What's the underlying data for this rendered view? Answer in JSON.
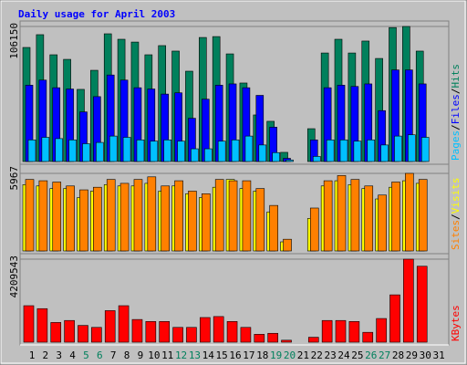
{
  "chart_data": [
    {
      "type": "bar",
      "title": "Daily usage for April 2003",
      "categories": [
        "1",
        "2",
        "3",
        "4",
        "5",
        "6",
        "7",
        "8",
        "9",
        "10",
        "11",
        "12",
        "13",
        "14",
        "15",
        "16",
        "17",
        "18",
        "19",
        "20",
        "21",
        "22",
        "23",
        "24",
        "25",
        "26",
        "27",
        "28",
        "29",
        "30",
        "31"
      ],
      "category_label_colors": [
        "#000000",
        "#000000",
        "#000000",
        "#000000",
        "#00805c",
        "#00805c",
        "#000000",
        "#000000",
        "#000000",
        "#000000",
        "#000000",
        "#00805c",
        "#00805c",
        "#000000",
        "#000000",
        "#000000",
        "#000000",
        "#000000",
        "#00805c",
        "#00805c",
        "#000000",
        "#000000",
        "#000000",
        "#000000",
        "#000000",
        "#00805c",
        "#00805c",
        "#000000",
        "#000000",
        "#000000",
        "#000000"
      ],
      "legend_separator": "/",
      "ylim": [
        0,
        106150
      ],
      "yticks": [
        106150
      ],
      "series": [
        {
          "name": "Hits",
          "color": "#00805c",
          "values": [
            89650,
            99700,
            83900,
            80300,
            56700,
            71700,
            100400,
            96100,
            93900,
            83900,
            91100,
            86800,
            71000,
            97500,
            98200,
            84600,
            61700,
            36600,
            31600,
            7200,
            0,
            25800,
            85300,
            96100,
            85300,
            94700,
            81000,
            105300,
            106150,
            86800,
            0
          ]
        },
        {
          "name": "Files",
          "color": "#0000ff",
          "values": [
            60000,
            64000,
            58000,
            57000,
            39000,
            51000,
            68000,
            64000,
            58000,
            57000,
            53000,
            54000,
            34000,
            49000,
            60000,
            61000,
            58000,
            52000,
            27000,
            2500,
            0,
            17000,
            58000,
            60000,
            59000,
            61000,
            40000,
            72000,
            72000,
            61000,
            0
          ]
        },
        {
          "name": "Pages",
          "color": "#00c0ff",
          "values": [
            17000,
            19000,
            18000,
            17000,
            14000,
            15000,
            20000,
            19000,
            17000,
            16000,
            17000,
            16000,
            10000,
            10000,
            16000,
            17000,
            20000,
            13000,
            7000,
            1200,
            0,
            4000,
            17000,
            17000,
            16000,
            17000,
            13000,
            20000,
            21000,
            19000,
            0
          ]
        }
      ]
    },
    {
      "type": "bar",
      "ylim": [
        0,
        5967
      ],
      "yticks": [
        5967
      ],
      "legend_separator": "/",
      "series": [
        {
          "name": "Visits",
          "color": "#ffff00",
          "values": [
            5100,
            5000,
            4800,
            4800,
            4100,
            4600,
            5100,
            5000,
            5000,
            5200,
            4600,
            5000,
            4400,
            4100,
            4900,
            5500,
            4800,
            4600,
            3000,
            700,
            0,
            2500,
            5000,
            5400,
            5100,
            4800,
            4000,
            4900,
            5400,
            5200,
            0
          ]
        },
        {
          "name": "Sites",
          "color": "#ff8000",
          "values": [
            5500,
            5400,
            5300,
            5000,
            4700,
            4900,
            5500,
            5200,
            5500,
            5700,
            5000,
            5400,
            4600,
            4400,
            5500,
            5400,
            5400,
            4800,
            3500,
            900,
            0,
            3300,
            5400,
            5800,
            5500,
            5000,
            4300,
            5300,
            5967,
            5500,
            0
          ]
        }
      ]
    },
    {
      "type": "bar",
      "ylim": [
        0,
        4209543
      ],
      "yticks": [
        4209543
      ],
      "categories": [
        "1",
        "2",
        "3",
        "4",
        "5",
        "6",
        "7",
        "8",
        "9",
        "10",
        "11",
        "12",
        "13",
        "14",
        "15",
        "16",
        "17",
        "18",
        "19",
        "20",
        "21",
        "22",
        "23",
        "24",
        "25",
        "26",
        "27",
        "28",
        "29",
        "30",
        "31"
      ],
      "series": [
        {
          "name": "KBytes",
          "color": "#ff0000",
          "values": [
            1850000,
            1700000,
            1000000,
            1100000,
            850000,
            750000,
            1600000,
            1850000,
            1150000,
            1050000,
            1050000,
            750000,
            750000,
            1250000,
            1300000,
            1050000,
            750000,
            400000,
            450000,
            100000,
            0,
            250000,
            1100000,
            1100000,
            1050000,
            500000,
            1200000,
            2400000,
            4209543,
            3850000,
            0
          ]
        }
      ]
    }
  ]
}
